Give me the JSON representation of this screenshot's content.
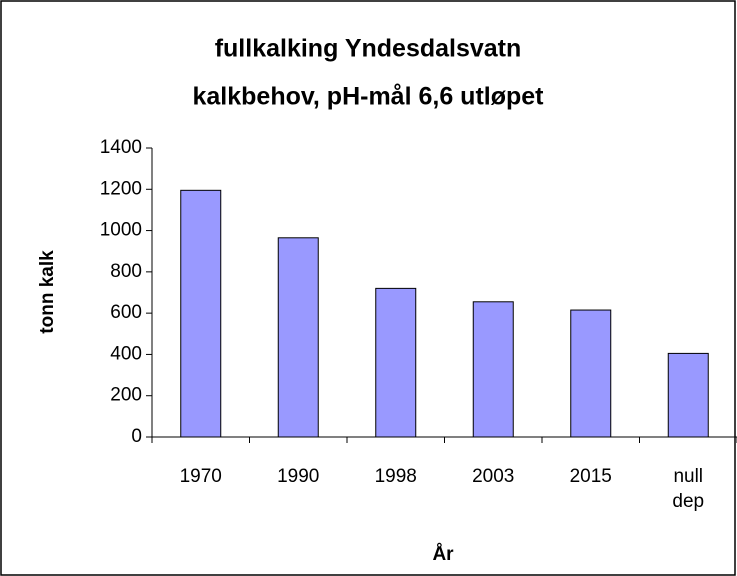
{
  "chart_data": {
    "type": "bar",
    "title_lines": [
      "fullkalking Yndesdalsvatn",
      "kalkbehov, pH-mål 6,6 utløpet"
    ],
    "y_label": "tonn kalk",
    "x_label": "År",
    "categories": [
      "1970",
      "1990",
      "1998",
      "2003",
      "2015",
      "null dep"
    ],
    "values": [
      1195,
      965,
      720,
      655,
      615,
      405
    ],
    "color": "#9999ff",
    "ylim": [
      0,
      1400
    ],
    "yticks": [
      0,
      200,
      400,
      600,
      800,
      1000,
      1200,
      1400
    ],
    "grid": false
  }
}
